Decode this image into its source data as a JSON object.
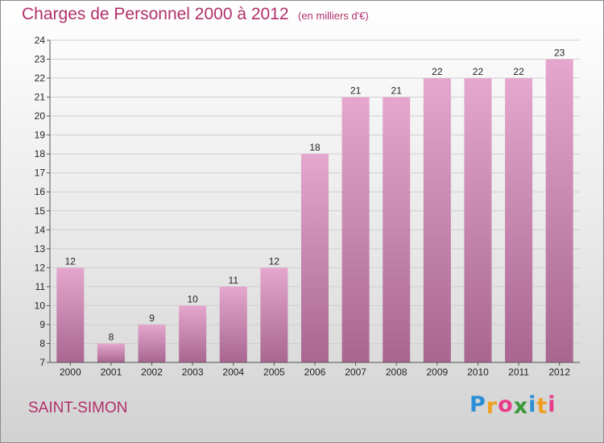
{
  "header": {
    "title": "Charges de Personnel 2000 à 2012",
    "subtitle": "(en milliers d'€)"
  },
  "footer": {
    "place": "SAINT-SIMON",
    "brand": "Proxiti",
    "brand_letters": [
      {
        "ch": "P",
        "color": "#2a8fd6"
      },
      {
        "ch": "r",
        "color": "#f0a020"
      },
      {
        "ch": "o",
        "color": "#e83b8a"
      },
      {
        "ch": "x",
        "color": "#3a9a3a"
      },
      {
        "ch": "i",
        "color": "#2a8fd6"
      },
      {
        "ch": "t",
        "color": "#f0a020"
      },
      {
        "ch": "i",
        "color": "#e83b8a"
      }
    ]
  },
  "colors": {
    "title": "#b0306a",
    "bar_top": "#e5a7ce",
    "bar_bottom": "#a86690",
    "axis": "#555555",
    "grid": "#cfcfcf"
  },
  "chart_data": {
    "type": "bar",
    "title": "Charges de Personnel 2000 à 2012",
    "subtitle": "(en milliers d'€)",
    "categories": [
      "2000",
      "2001",
      "2002",
      "2003",
      "2004",
      "2005",
      "2006",
      "2007",
      "2008",
      "2009",
      "2010",
      "2011",
      "2012"
    ],
    "values": [
      12,
      8,
      9,
      10,
      11,
      12,
      18,
      21,
      21,
      22,
      22,
      22,
      23
    ],
    "ylim": [
      7,
      24
    ],
    "yticks": [
      7,
      8,
      9,
      10,
      11,
      12,
      13,
      14,
      15,
      16,
      17,
      18,
      19,
      20,
      21,
      22,
      23,
      24
    ],
    "grid": true,
    "legend": "none"
  }
}
